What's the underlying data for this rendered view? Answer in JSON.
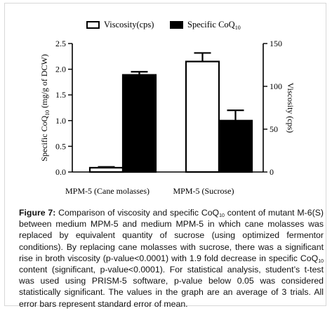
{
  "chart_data": {
    "type": "bar",
    "legend": {
      "placement": "top",
      "items": [
        {
          "label": "Viscosity(cps)",
          "fill": "#ffffff"
        },
        {
          "label": "Specific CoQ",
          "sub": "10",
          "fill": "#000000"
        }
      ]
    },
    "categories": [
      "MPM-5 (Cane molasses)",
      "MPM-5 (Sucrose)"
    ],
    "y_left": {
      "label": "Specific CoQ",
      "label_sub": "10",
      "label_suffix": " (mg/g of DCW)",
      "lim": [
        0,
        2.5
      ],
      "ticks": [
        "0.0",
        "0.5",
        "1.0",
        "1.5",
        "2.0",
        "2.5"
      ]
    },
    "y_right": {
      "label": "Viscosity (cps)",
      "lim": [
        0,
        150
      ],
      "ticks": [
        "0",
        "50",
        "100",
        "150"
      ]
    },
    "series": [
      {
        "name": "Viscosity(cps)",
        "axis": "right",
        "color": "#ffffff",
        "values": [
          5,
          129
        ],
        "errors": [
          1,
          10
        ]
      },
      {
        "name": "Specific CoQ10",
        "axis": "left",
        "color": "#000000",
        "values": [
          1.89,
          1.0
        ],
        "errors": [
          0.06,
          0.2
        ]
      }
    ]
  },
  "caption": {
    "label": "Figure 7:",
    "p1": " Comparison of viscosity and specific CoQ",
    "sub1": "10",
    "p2": " content of mutant M-6(S) between medium MPM-5 and medium MPM-5 in which cane molasses was replaced by equivalent quantity of sucrose (using optimized fermentor conditions). By replacing cane molasses with sucrose, there was a significant rise in broth viscosity (p-value<0.0001) with 1.9 fold decrease in specific CoQ",
    "sub2": "10",
    "p3": " content (significant, p-value<0.0001). For statistical analysis, student’s t-test was used using PRISM-5 software, p-value below 0.05 was considered statistically significant. The values in the graph are an average of 3 trials. All error bars represent standard error of mean."
  }
}
